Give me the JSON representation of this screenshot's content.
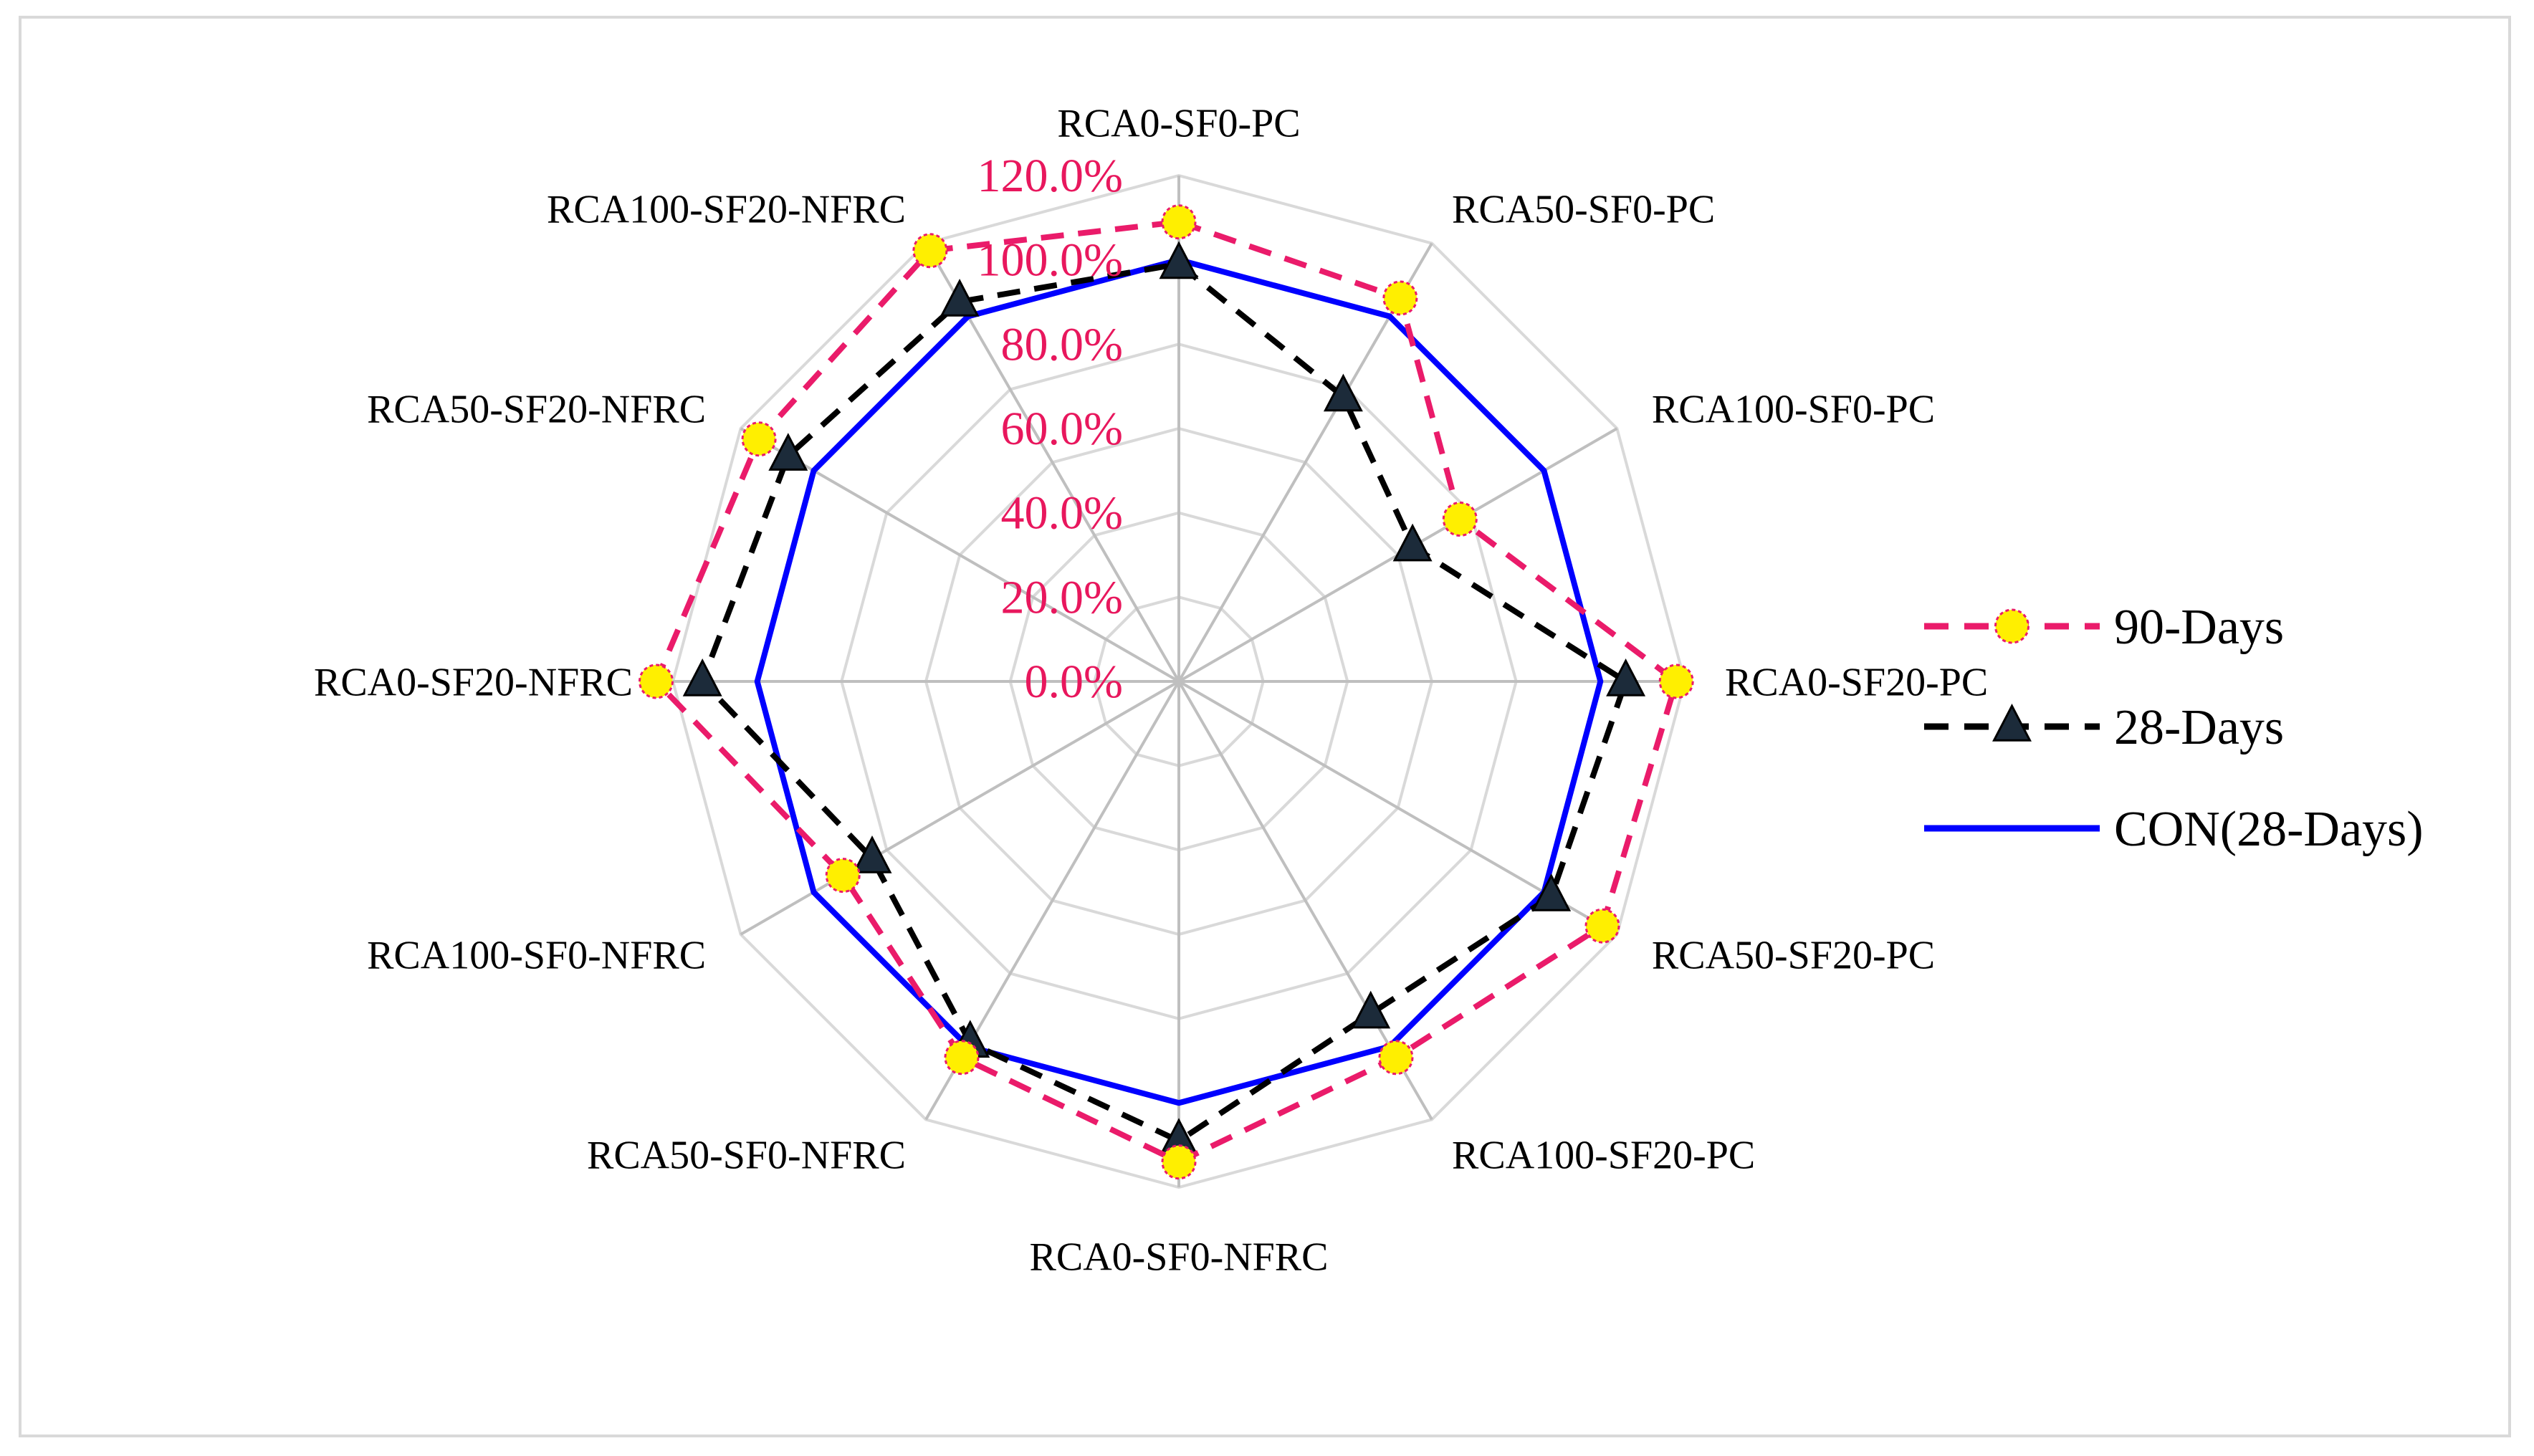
{
  "chart_data": {
    "type": "radar",
    "title": "",
    "categories": [
      "RCA0-SF0-PC",
      "RCA50-SF0-PC",
      "RCA100-SF0-PC",
      "RCA0-SF20-PC",
      "RCA50-SF20-PC",
      "RCA100-SF20-PC",
      "RCA0-SF0-NFRC",
      "RCA50-SF0-NFRC",
      "RCA100-SF0-NFRC",
      "RCA0-SF20-NFRC",
      "RCA50-SF20-NFRC",
      "RCA100-SF20-NFRC"
    ],
    "axis": {
      "min": 0,
      "max": 120,
      "step": 20,
      "unit": "%",
      "tick_labels": [
        "0.0%",
        "20.0%",
        "40.0%",
        "60.0%",
        "80.0%",
        "100.0%",
        "120.0%"
      ],
      "tick_color": "#e8175d"
    },
    "series": [
      {
        "name": "90-Days",
        "style": "dashed-circle",
        "line_color": "#ea1b6a",
        "marker_fill": "#ffef00",
        "values": [
          109,
          105,
          77,
          118,
          116,
          103,
          114,
          103,
          92,
          124,
          115,
          118
        ]
      },
      {
        "name": "28-Days",
        "style": "dashed-triangle",
        "line_color": "#000000",
        "marker_fill": "#1c2b3a",
        "values": [
          99,
          78,
          64,
          106,
          102,
          91,
          109,
          99,
          84,
          113,
          107,
          104
        ]
      },
      {
        "name": "CON(28-Days)",
        "style": "solid",
        "line_color": "#0000ff",
        "values": [
          100,
          100,
          100,
          100,
          100,
          100,
          100,
          100,
          100,
          100,
          100,
          100
        ]
      }
    ],
    "legend_position": "right",
    "grid": true
  }
}
